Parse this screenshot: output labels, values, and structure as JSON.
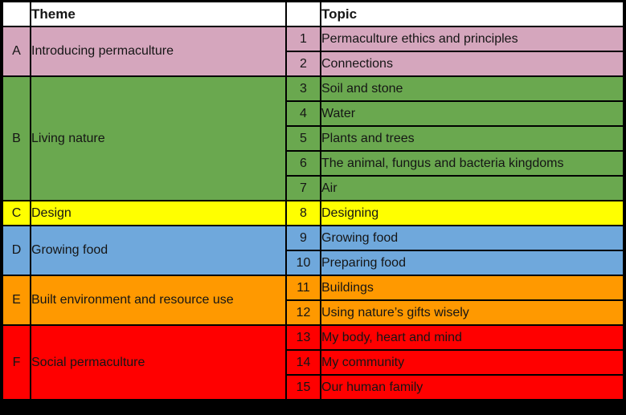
{
  "header": {
    "theme_label": "Theme",
    "topic_label": "Topic",
    "bg": "#ffffff"
  },
  "colors": {
    "border": "#000000",
    "text": "#151515",
    "page_background": "#000000"
  },
  "themes": [
    {
      "letter": "A",
      "name": "Introducing permaculture",
      "color": "#d5a6bd",
      "topics": [
        {
          "num": "1",
          "title": "Permaculture ethics and principles"
        },
        {
          "num": "2",
          "title": "Connections"
        }
      ]
    },
    {
      "letter": "B",
      "name": "Living nature",
      "color": "#6aa84f",
      "topics": [
        {
          "num": "3",
          "title": "Soil and stone"
        },
        {
          "num": "4",
          "title": "Water"
        },
        {
          "num": "5",
          "title": "Plants and trees"
        },
        {
          "num": "6",
          "title": "The animal, fungus and bacteria kingdoms"
        },
        {
          "num": "7",
          "title": "Air"
        }
      ]
    },
    {
      "letter": "C",
      "name": "Design",
      "color": "#ffff00",
      "topics": [
        {
          "num": "8",
          "title": "Designing"
        }
      ]
    },
    {
      "letter": "D",
      "name": "Growing food",
      "color": "#6fa8dc",
      "topics": [
        {
          "num": "9",
          "title": "Growing food"
        },
        {
          "num": "10",
          "title": "Preparing food"
        }
      ]
    },
    {
      "letter": "E",
      "name": "Built environment and resource use",
      "color": "#ff9900",
      "topics": [
        {
          "num": "11",
          "title": "Buildings"
        },
        {
          "num": "12",
          "title": "Using nature’s gifts wisely"
        }
      ]
    },
    {
      "letter": "F",
      "name": "Social permaculture",
      "color": "#ff0000",
      "topics": [
        {
          "num": "13",
          "title": "My body, heart and mind"
        },
        {
          "num": "14",
          "title": "My community"
        },
        {
          "num": "15",
          "title": "Our human family"
        }
      ]
    }
  ]
}
